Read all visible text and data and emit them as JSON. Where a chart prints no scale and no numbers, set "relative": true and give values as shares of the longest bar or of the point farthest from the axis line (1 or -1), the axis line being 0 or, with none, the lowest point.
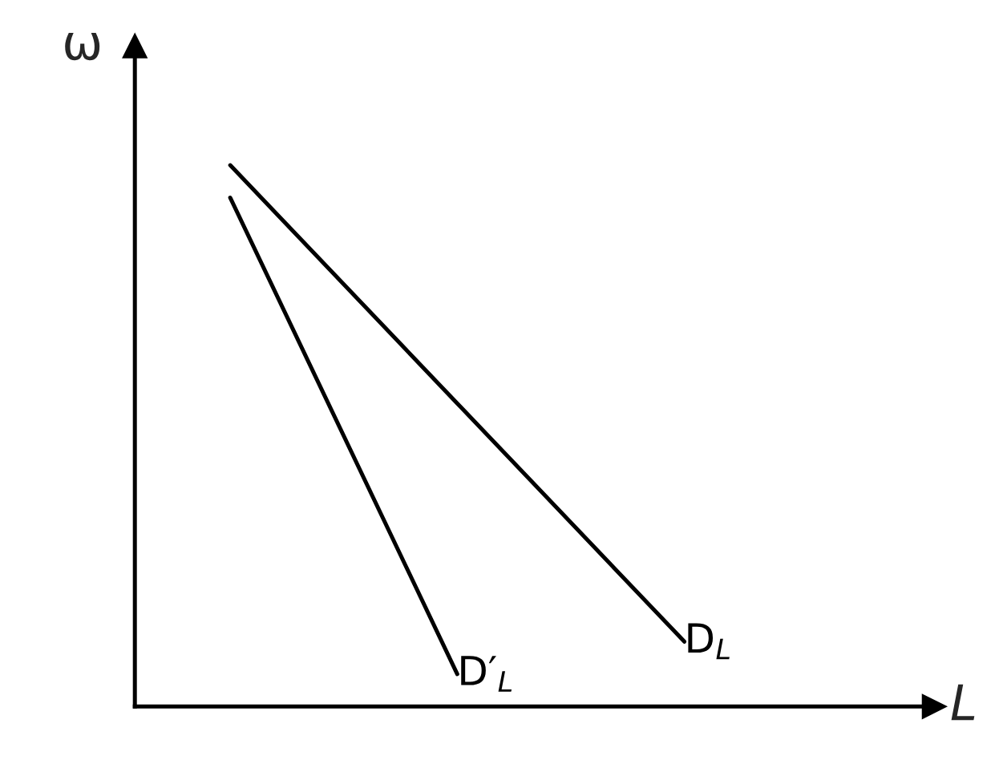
{
  "chart_data": {
    "type": "line",
    "relative": true,
    "xlabel": "L",
    "ylabel": "ω",
    "legend": false,
    "categories": [
      null,
      null,
      null
    ],
    "series": [
      {
        "name": "D$_{L}$",
        "color": "#000000",
        "values": [
          1,
          0.56,
          0.12
        ]
      },
      {
        "name": "D′$_{L}$",
        "color": "#000000",
        "values": [
          0.94,
          0.06,
          null
        ]
      }
    ]
  }
}
